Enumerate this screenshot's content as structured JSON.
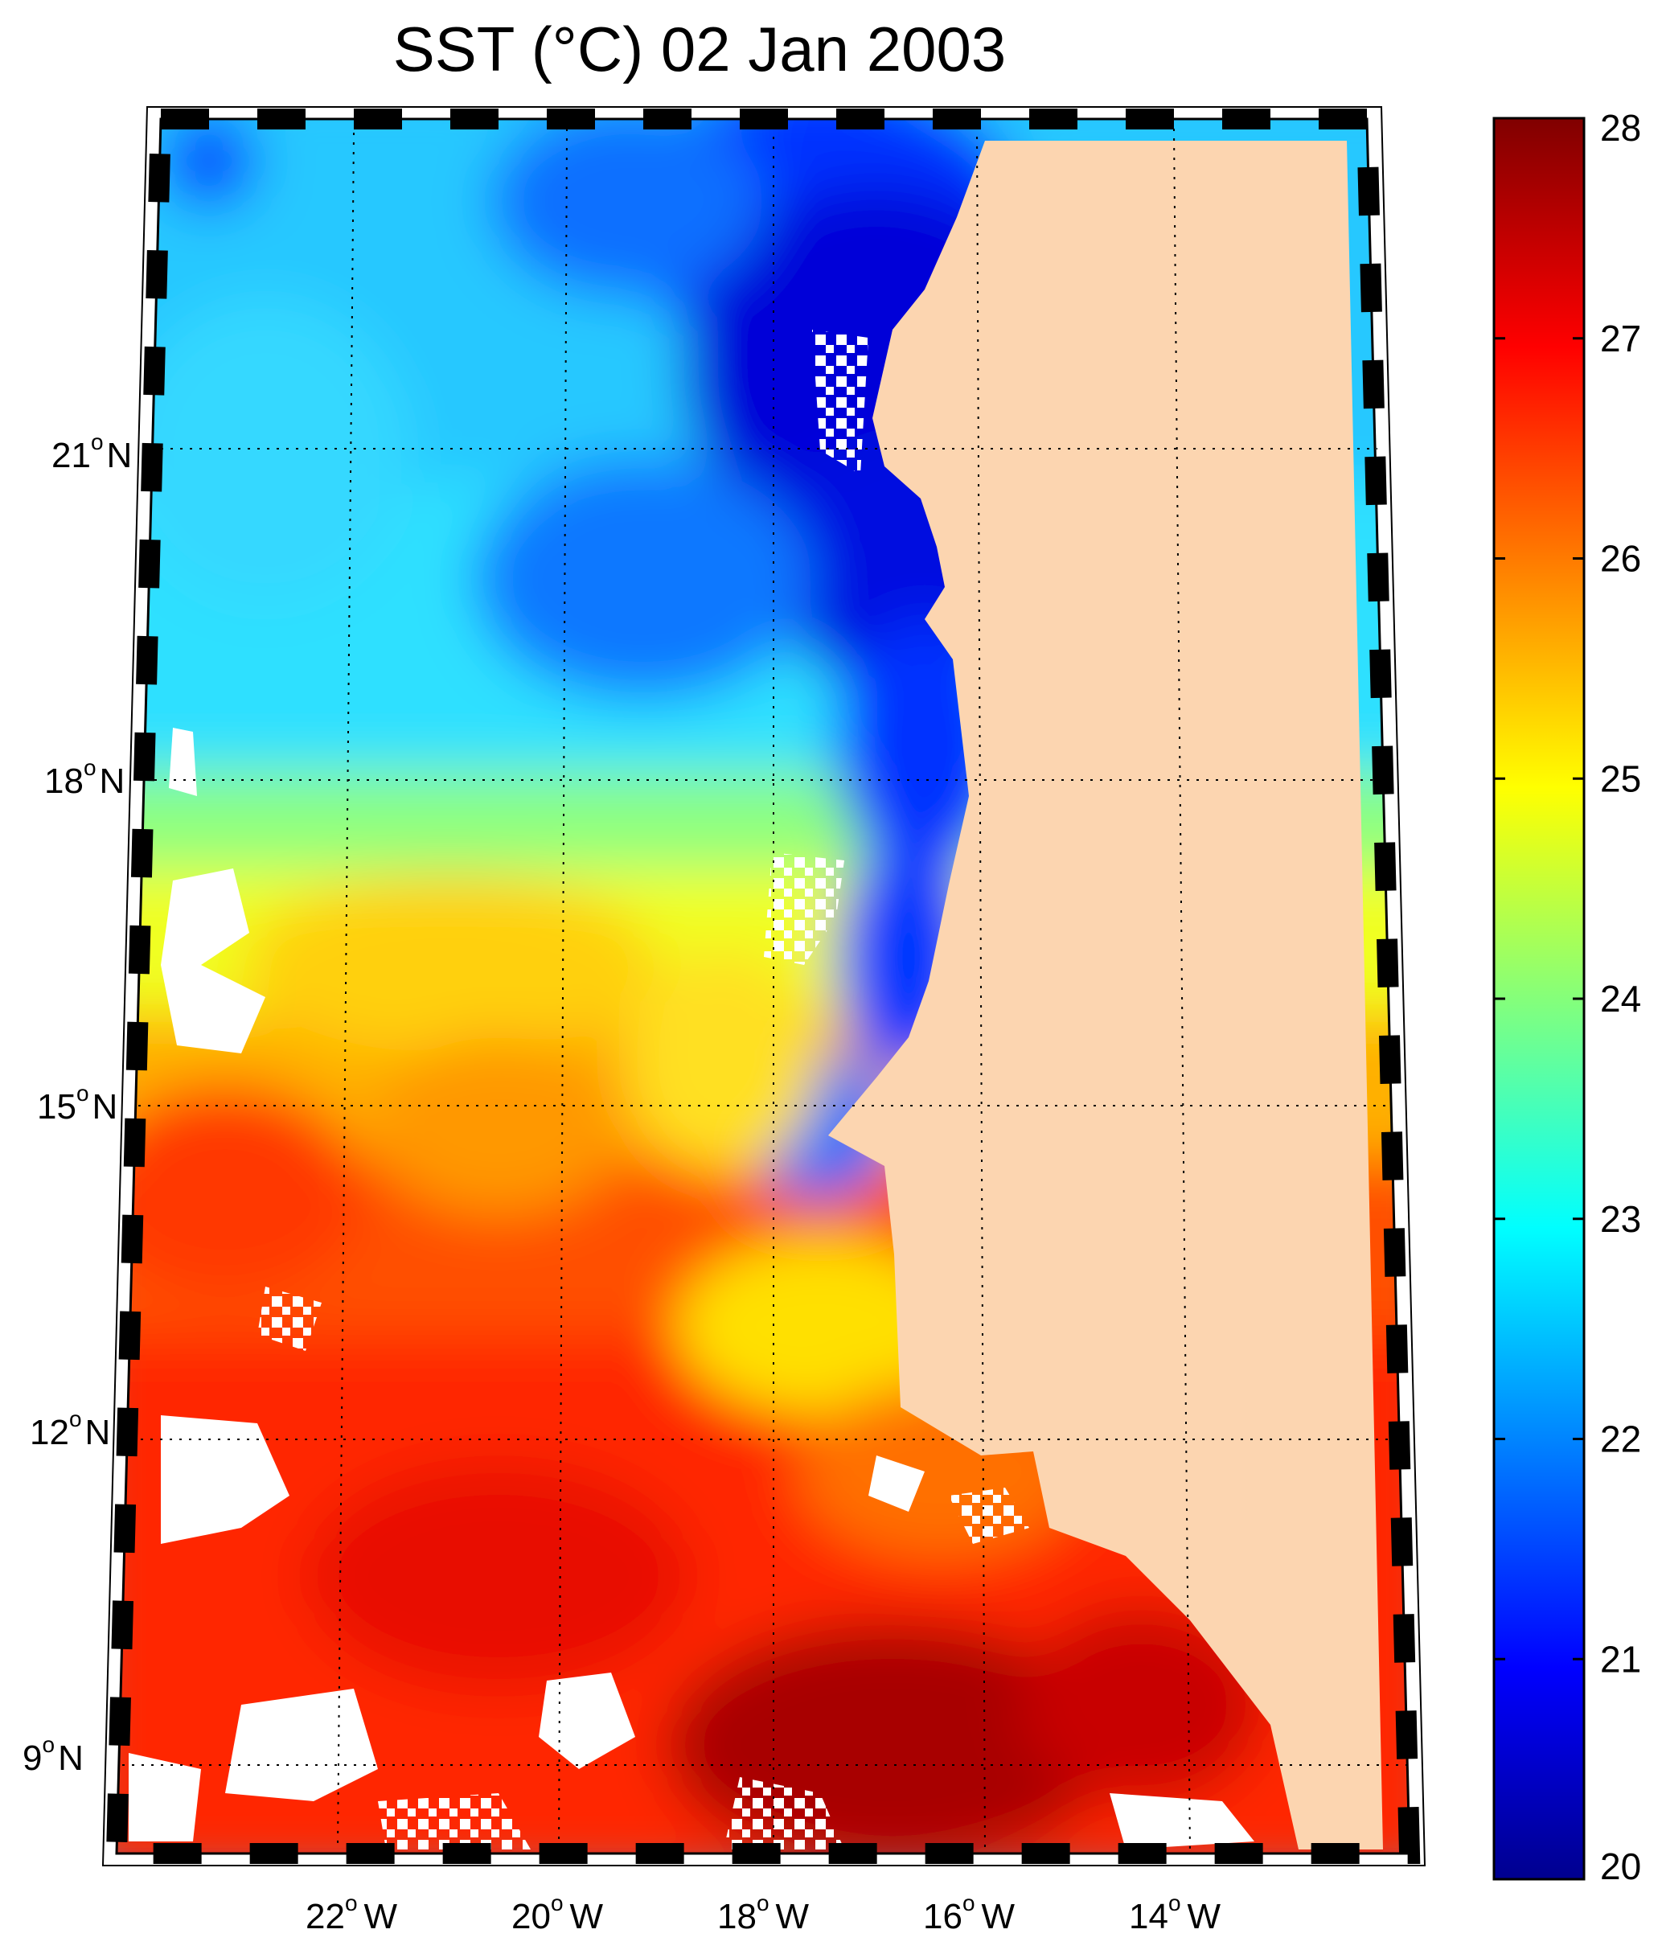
{
  "map": {
    "title": "SST (°C) 02 Jan 2003",
    "lat_labels": [
      {
        "value": 21,
        "num": "21",
        "hemi": "N"
      },
      {
        "value": 18,
        "num": "18",
        "hemi": "N"
      },
      {
        "value": 15,
        "num": "15",
        "hemi": "N"
      },
      {
        "value": 12,
        "num": "12",
        "hemi": "N"
      },
      {
        "value": 9,
        "num": "9",
        "hemi": "N"
      }
    ],
    "lon_labels": [
      {
        "value": -22,
        "num": "22",
        "hemi": "W"
      },
      {
        "value": -20,
        "num": "20",
        "hemi": "W"
      },
      {
        "value": -18,
        "num": "18",
        "hemi": "W"
      },
      {
        "value": -16,
        "num": "16",
        "hemi": "W"
      },
      {
        "value": -14,
        "num": "14",
        "hemi": "W"
      }
    ],
    "degree_symbol": "o",
    "land_color": "#fcd5b0",
    "colorbar": {
      "min": 20,
      "max": 28,
      "ticks": [
        "20",
        "21",
        "22",
        "23",
        "24",
        "25",
        "26",
        "27",
        "28"
      ],
      "colormap": [
        "#00008f",
        "#0000ff",
        "#00ffff",
        "#ffff00",
        "#ff0000",
        "#800000"
      ]
    }
  }
}
